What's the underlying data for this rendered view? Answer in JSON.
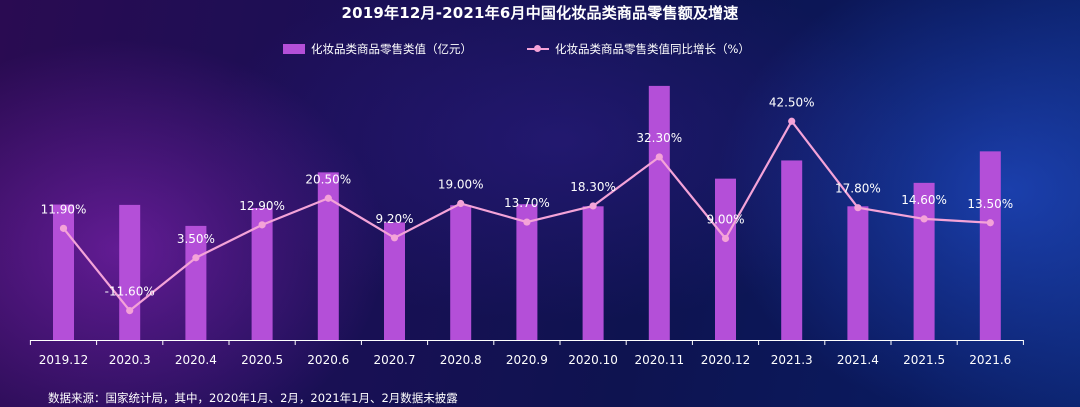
{
  "page": {
    "title": "2019年12月-2021年6月中国化妆品类商品零售额及增速",
    "source_note": "数据来源：国家统计局，其中，2020年1月、2月，2021年1月、2月数据未披露"
  },
  "colors": {
    "bar": "#b44fd8",
    "line": "#f4a3d8",
    "axis": "#ffffff"
  },
  "chart_data": {
    "type": "bar+line",
    "title": "2019年12月-2021年6月中国化妆品类商品零售额及增速",
    "categories": [
      "2019.12",
      "2020.3",
      "2020.4",
      "2020.5",
      "2020.6",
      "2020.7",
      "2020.8",
      "2020.9",
      "2020.10",
      "2020.11",
      "2020.12",
      "2021.3",
      "2021.4",
      "2021.5",
      "2021.6"
    ],
    "series": [
      {
        "name": "化妆品类商品零售类值（亿元）",
        "type": "bar",
        "axis": "left",
        "values": [
          387,
          386,
          326,
          377,
          479,
          336,
          385,
          388,
          382,
          726,
          461,
          513,
          382,
          449,
          539
        ]
      },
      {
        "name": "化妆品类商品零售类值同比增长（%）",
        "type": "line",
        "axis": "right",
        "values": [
          11.9,
          -11.6,
          3.5,
          12.9,
          20.5,
          9.2,
          19.0,
          13.7,
          18.3,
          32.3,
          9.0,
          42.5,
          17.8,
          14.6,
          13.5
        ],
        "labels": [
          "11.90%",
          "-11.60%",
          "3.50%",
          "12.90%",
          "20.50%",
          "9.20%",
          "19.00%",
          "13.70%",
          "18.30%",
          "32.30%",
          "9.00%",
          "42.50%",
          "17.80%",
          "14.60%",
          "13.50%"
        ]
      }
    ],
    "ylim_left": [
      0,
      800
    ],
    "ylim_right": [
      -20,
      60
    ],
    "grid": false,
    "legend": "top-center"
  }
}
